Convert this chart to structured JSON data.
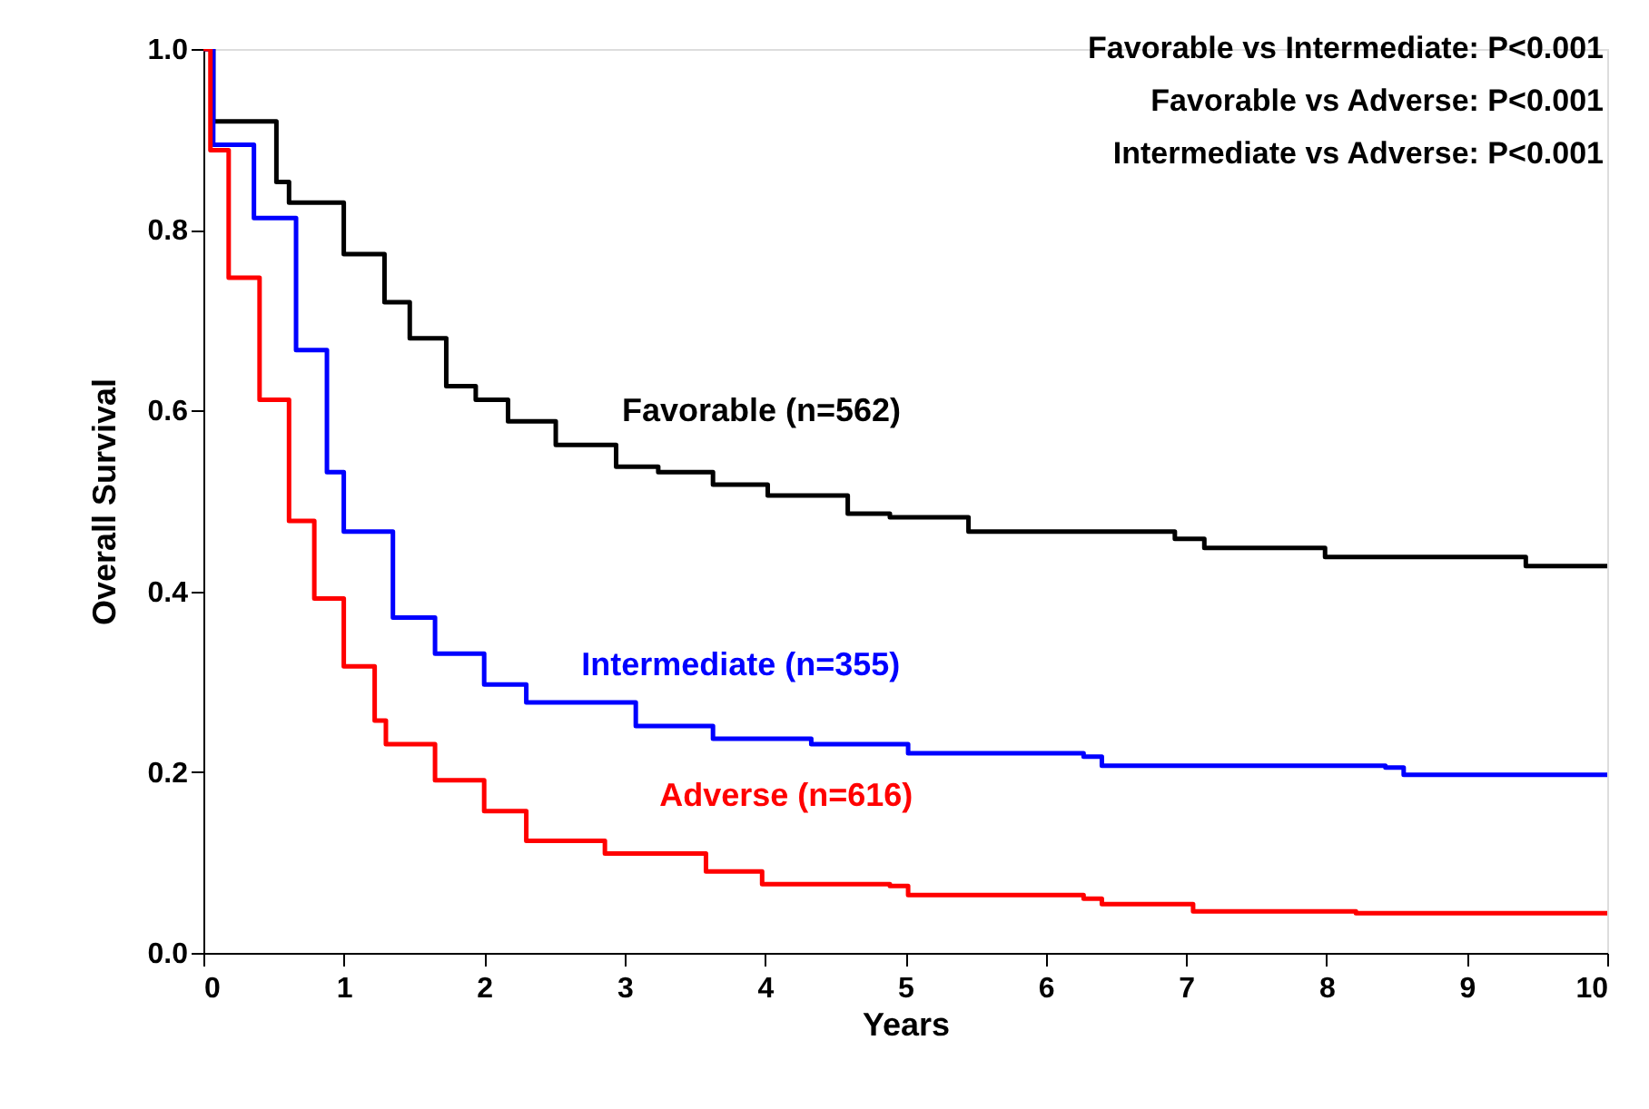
{
  "chart_data": {
    "type": "step",
    "xlabel": "Years",
    "ylabel": "Overall Survival",
    "xlim": [
      0,
      10
    ],
    "ylim": [
      0,
      1.0
    ],
    "xticks": [
      0,
      1,
      2,
      3,
      4,
      5,
      6,
      7,
      8,
      9,
      10
    ],
    "yticks": [
      {
        "value": 0,
        "label": "0.0"
      },
      {
        "value": 0.2,
        "label": "0.2"
      },
      {
        "value": 0.4,
        "label": "0.4"
      },
      {
        "value": 0.6,
        "label": "0.6"
      },
      {
        "value": 0.8,
        "label": "0.8"
      },
      {
        "value": 1.0,
        "label": "1.0"
      }
    ],
    "grid": false,
    "legend": false,
    "marker": "none",
    "line_style": "solid",
    "annotations": [
      "Favorable vs Intermediate: P<0.001",
      "Favorable vs Adverse: P<0.001",
      "Intermediate vs Adverse: P<0.001"
    ],
    "series": [
      {
        "name": "Favorable (n=562)",
        "color": "#000000",
        "x": [
          0,
          0.07,
          0.52,
          0.61,
          1.0,
          1.29,
          1.47,
          1.73,
          1.94,
          2.17,
          2.51,
          2.94,
          3.24,
          3.63,
          4.02,
          4.59,
          4.89,
          5.45,
          6.31,
          6.92,
          7.13,
          7.77,
          7.99,
          9.07,
          9.42,
          10
        ],
        "values": [
          1.0,
          0.92,
          0.853,
          0.83,
          0.773,
          0.72,
          0.68,
          0.627,
          0.612,
          0.588,
          0.562,
          0.538,
          0.532,
          0.518,
          0.506,
          0.486,
          0.482,
          0.466,
          0.466,
          0.458,
          0.448,
          0.448,
          0.438,
          0.438,
          0.428,
          0.426
        ]
      },
      {
        "name": "Intermediate (n=355)",
        "color": "#0000ff",
        "x": [
          0,
          0.07,
          0.36,
          0.66,
          0.88,
          1.0,
          1.35,
          1.65,
          2.0,
          2.3,
          3.08,
          3.63,
          4.11,
          4.33,
          5.02,
          6.27,
          6.4,
          8.42,
          8.55,
          10
        ],
        "values": [
          1.0,
          0.894,
          0.813,
          0.667,
          0.532,
          0.466,
          0.371,
          0.331,
          0.297,
          0.277,
          0.251,
          0.237,
          0.237,
          0.231,
          0.221,
          0.217,
          0.207,
          0.205,
          0.197,
          0.197
        ]
      },
      {
        "name": "Adverse (n=616)",
        "color": "#ff0000",
        "x": [
          0,
          0.05,
          0.18,
          0.4,
          0.61,
          0.79,
          1.0,
          1.22,
          1.3,
          1.65,
          2.0,
          2.3,
          2.86,
          3.58,
          3.98,
          4.89,
          5.02,
          6.27,
          6.4,
          7.05,
          8.21,
          10
        ],
        "values": [
          1.0,
          0.888,
          0.747,
          0.612,
          0.478,
          0.392,
          0.317,
          0.257,
          0.231,
          0.191,
          0.157,
          0.124,
          0.11,
          0.09,
          0.076,
          0.074,
          0.064,
          0.06,
          0.054,
          0.046,
          0.044,
          0.042
        ]
      }
    ]
  }
}
